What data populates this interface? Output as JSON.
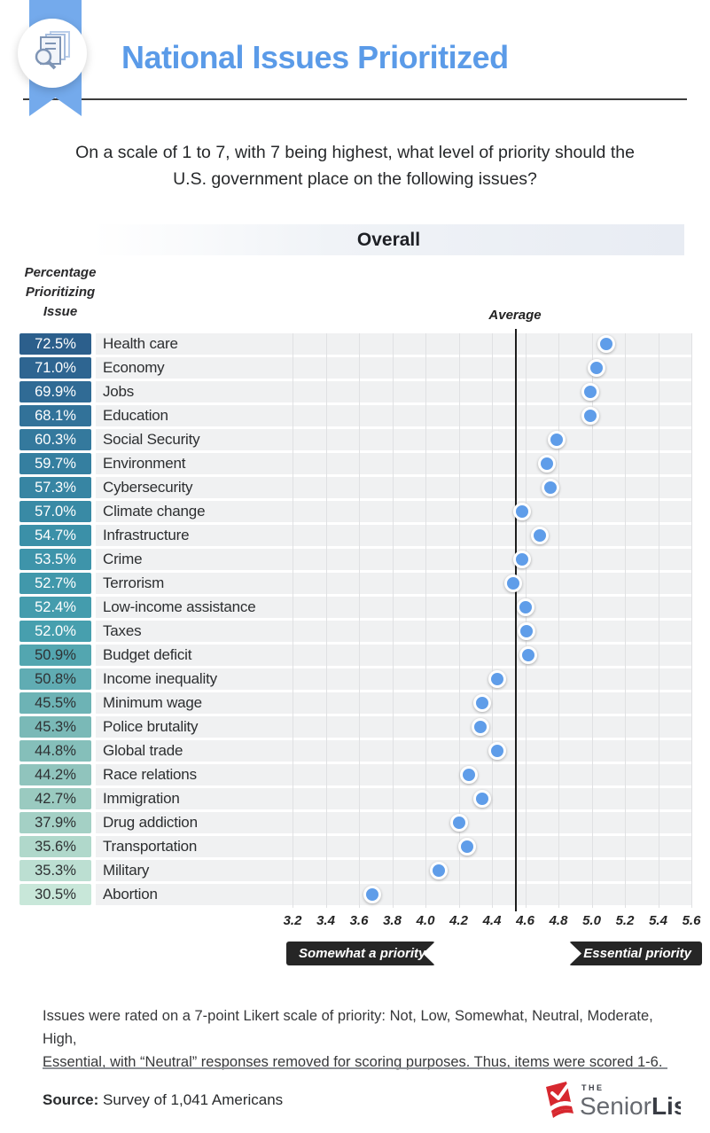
{
  "header": {
    "title": "National Issues Prioritized"
  },
  "question": {
    "line1": "On a scale of 1 to 7, with 7 being highest, what level of priority should the",
    "line2": "U.S. government place on the following issues?"
  },
  "section": {
    "title": "Overall"
  },
  "chart_data": {
    "type": "scatter",
    "title": "Overall",
    "col_header": "Percentage Prioritizing Issue",
    "average_label": "Average",
    "average_value": 4.54,
    "xlim": [
      3.2,
      5.6
    ],
    "ticks": [
      "3.2",
      "3.4",
      "3.6",
      "3.8",
      "4.0",
      "4.2",
      "4.4",
      "4.6",
      "4.8",
      "5.0",
      "5.2",
      "5.4",
      "5.6"
    ],
    "left_tag": "Somewhat a priority",
    "right_tag": "Essential priority",
    "dot_color": "#5f9de9",
    "rows": [
      {
        "label": "Health care",
        "pct": "72.5%",
        "value": 5.09,
        "badge_color": "#2c5f8c",
        "badge_text": "#ffffff"
      },
      {
        "label": "Economy",
        "pct": "71.0%",
        "value": 5.03,
        "badge_color": "#2e6591",
        "badge_text": "#ffffff"
      },
      {
        "label": "Jobs",
        "pct": "69.9%",
        "value": 4.99,
        "badge_color": "#306b95",
        "badge_text": "#ffffff"
      },
      {
        "label": "Education",
        "pct": "68.1%",
        "value": 4.99,
        "badge_color": "#327299",
        "badge_text": "#ffffff"
      },
      {
        "label": "Social Security",
        "pct": "60.3%",
        "value": 4.79,
        "badge_color": "#34799d",
        "badge_text": "#ffffff"
      },
      {
        "label": "Environment",
        "pct": "59.7%",
        "value": 4.73,
        "badge_color": "#357fa0",
        "badge_text": "#ffffff"
      },
      {
        "label": "Cybersecurity",
        "pct": "57.3%",
        "value": 4.75,
        "badge_color": "#3785a3",
        "badge_text": "#ffffff"
      },
      {
        "label": "Climate change",
        "pct": "57.0%",
        "value": 4.58,
        "badge_color": "#398aa5",
        "badge_text": "#ffffff"
      },
      {
        "label": "Infrastructure",
        "pct": "54.7%",
        "value": 4.69,
        "badge_color": "#3b90a8",
        "badge_text": "#ffffff"
      },
      {
        "label": "Crime",
        "pct": "53.5%",
        "value": 4.58,
        "badge_color": "#3e94aa",
        "badge_text": "#ffffff"
      },
      {
        "label": "Terrorism",
        "pct": "52.7%",
        "value": 4.53,
        "badge_color": "#4198ab",
        "badge_text": "#ffffff"
      },
      {
        "label": "Low-income assistance",
        "pct": "52.4%",
        "value": 4.6,
        "badge_color": "#449cad",
        "badge_text": "#ffffff"
      },
      {
        "label": "Taxes",
        "pct": "52.0%",
        "value": 4.61,
        "badge_color": "#479fae",
        "badge_text": "#ffffff"
      },
      {
        "label": "Budget deficit",
        "pct": "50.9%",
        "value": 4.62,
        "badge_color": "#53a6b0",
        "badge_text": "#2e3133"
      },
      {
        "label": "Income inequality",
        "pct": "50.8%",
        "value": 4.43,
        "badge_color": "#60acb3",
        "badge_text": "#2e3133"
      },
      {
        "label": "Minimum wage",
        "pct": "45.5%",
        "value": 4.34,
        "badge_color": "#6db3b5",
        "badge_text": "#2e3133"
      },
      {
        "label": "Police brutality",
        "pct": "45.3%",
        "value": 4.33,
        "badge_color": "#7ab9b7",
        "badge_text": "#2e3133"
      },
      {
        "label": "Global trade",
        "pct": "44.8%",
        "value": 4.43,
        "badge_color": "#85bfba",
        "badge_text": "#2e3133"
      },
      {
        "label": "Race relations",
        "pct": "44.2%",
        "value": 4.26,
        "badge_color": "#90c4bd",
        "badge_text": "#2e3133"
      },
      {
        "label": "Immigration",
        "pct": "42.7%",
        "value": 4.34,
        "badge_color": "#9acac0",
        "badge_text": "#2e3133"
      },
      {
        "label": "Drug addiction",
        "pct": "37.9%",
        "value": 4.2,
        "badge_color": "#a4d0c5",
        "badge_text": "#2e3133"
      },
      {
        "label": "Transportation",
        "pct": "35.6%",
        "value": 4.25,
        "badge_color": "#b0d8cb",
        "badge_text": "#2e3133"
      },
      {
        "label": "Military",
        "pct": "35.3%",
        "value": 4.08,
        "badge_color": "#bcdfd2",
        "badge_text": "#2e3133"
      },
      {
        "label": "Abortion",
        "pct": "30.5%",
        "value": 3.68,
        "badge_color": "#c8e7d9",
        "badge_text": "#2e3133"
      }
    ]
  },
  "note": {
    "line1": "Issues were rated on a 7-point Likert scale of priority: Not, Low, Somewhat, Neutral, Moderate, High,",
    "line2": "Essential, with “Neutral” responses removed for scoring purposes. Thus, items were scored 1-6."
  },
  "source": {
    "label": "Source:",
    "text": " Survey of 1,041 Americans"
  },
  "logo": {
    "the": "THE",
    "senior": "Senior",
    "list": "List"
  }
}
